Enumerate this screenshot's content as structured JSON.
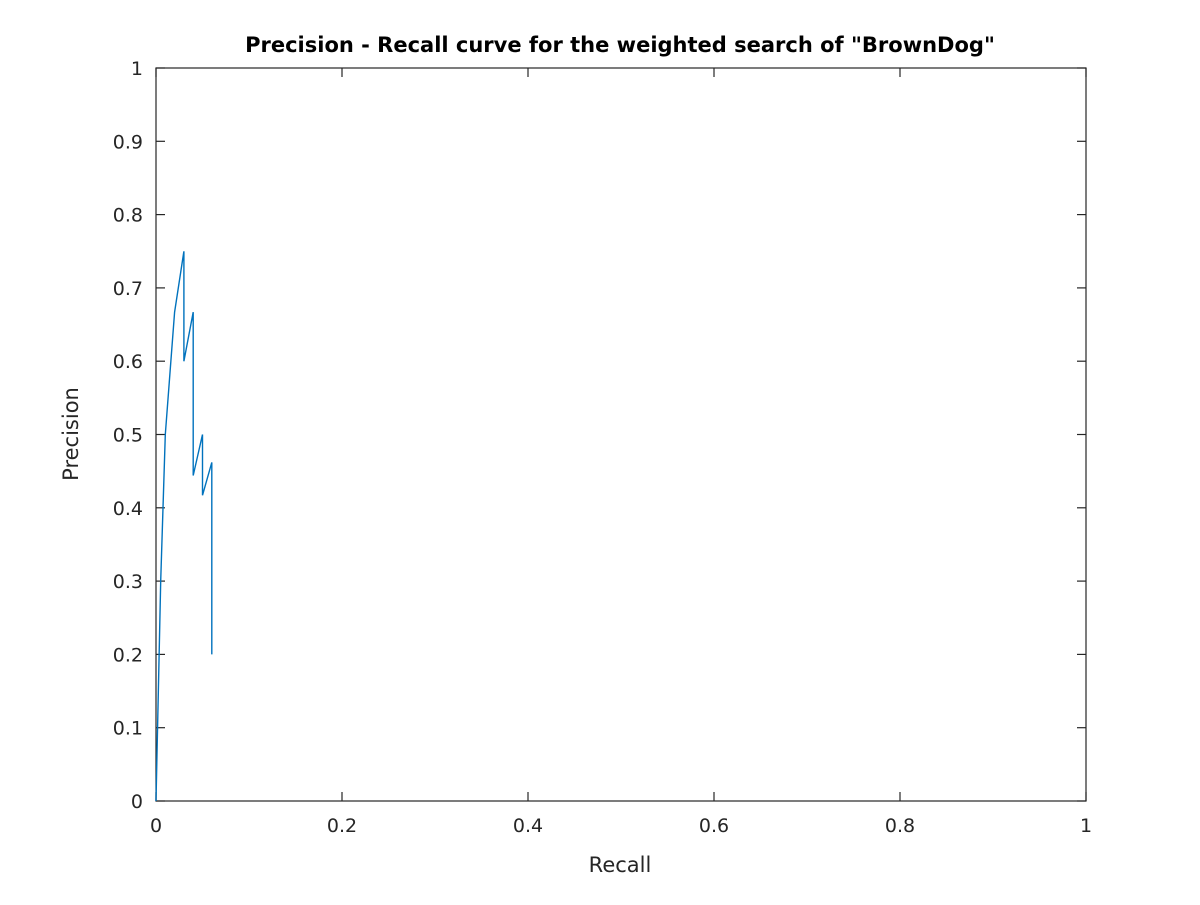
{
  "chart_data": {
    "type": "line",
    "title": "Precision - Recall curve for the weighted search of \"BrownDog\"",
    "xlabel": "Recall",
    "ylabel": "Precision",
    "xlim": [
      0,
      1
    ],
    "ylim": [
      0,
      1
    ],
    "xticks": [
      "0",
      "0.2",
      "0.4",
      "0.6",
      "0.8",
      "1"
    ],
    "yticks": [
      "0",
      "0.1",
      "0.2",
      "0.3",
      "0.4",
      "0.5",
      "0.6",
      "0.7",
      "0.8",
      "0.9",
      "1"
    ],
    "grid": false,
    "legend": "none",
    "series": [
      {
        "color": "#0072bd",
        "x": [
          0,
          0.005,
          0.01,
          0.02,
          0.03,
          0.03,
          0.04,
          0.04,
          0.05,
          0.05,
          0.06,
          0.06
        ],
        "y": [
          0,
          0.3,
          0.5,
          0.667,
          0.75,
          0.6,
          0.667,
          0.444,
          0.5,
          0.417,
          0.462,
          0.2
        ]
      }
    ]
  }
}
